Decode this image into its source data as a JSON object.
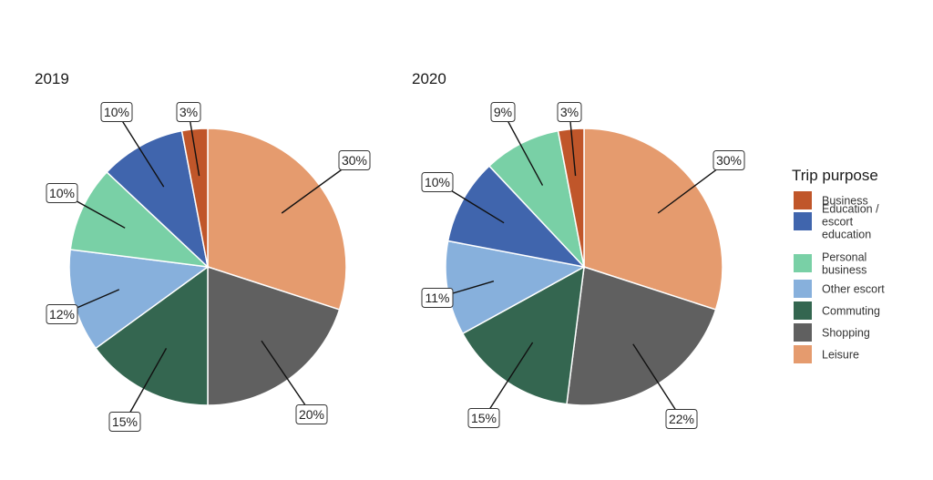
{
  "chart_data": [
    {
      "type": "pie",
      "title": "2019",
      "slices": [
        {
          "category": "Leisure",
          "value": 30,
          "label": "30%"
        },
        {
          "category": "Shopping",
          "value": 20,
          "label": "20%"
        },
        {
          "category": "Commuting",
          "value": 15,
          "label": "15%"
        },
        {
          "category": "Other escort",
          "value": 12,
          "label": "12%"
        },
        {
          "category": "Personal business",
          "value": 10,
          "label": "10%"
        },
        {
          "category": "Education / escort education",
          "value": 10,
          "label": "10%"
        },
        {
          "category": "Business",
          "value": 3,
          "label": "3%"
        }
      ]
    },
    {
      "type": "pie",
      "title": "2020",
      "slices": [
        {
          "category": "Leisure",
          "value": 30,
          "label": "30%"
        },
        {
          "category": "Shopping",
          "value": 22,
          "label": "22%"
        },
        {
          "category": "Commuting",
          "value": 15,
          "label": "15%"
        },
        {
          "category": "Other escort",
          "value": 11,
          "label": "11%"
        },
        {
          "category": "Education / escort education",
          "value": 10,
          "label": "10%"
        },
        {
          "category": "Personal business",
          "value": 9,
          "label": "9%"
        },
        {
          "category": "Business",
          "value": 3,
          "label": "3%"
        }
      ]
    }
  ],
  "legend": {
    "title": "Trip purpose",
    "items": [
      {
        "category": "Business",
        "lines": [
          "Business"
        ],
        "color": "#c0562a"
      },
      {
        "category": "Education / escort education",
        "lines": [
          "Education /",
          "escort",
          "education"
        ],
        "color": "#4065ad"
      },
      {
        "category": "Personal business",
        "lines": [
          "Personal",
          "business"
        ],
        "color": "#79d0a6"
      },
      {
        "category": "Other escort",
        "lines": [
          "Other escort"
        ],
        "color": "#87b0dc"
      },
      {
        "category": "Commuting",
        "lines": [
          "Commuting"
        ],
        "color": "#346650"
      },
      {
        "category": "Shopping",
        "lines": [
          "Shopping"
        ],
        "color": "#606060"
      },
      {
        "category": "Leisure",
        "lines": [
          "Leisure"
        ],
        "color": "#e59b6e"
      }
    ]
  }
}
